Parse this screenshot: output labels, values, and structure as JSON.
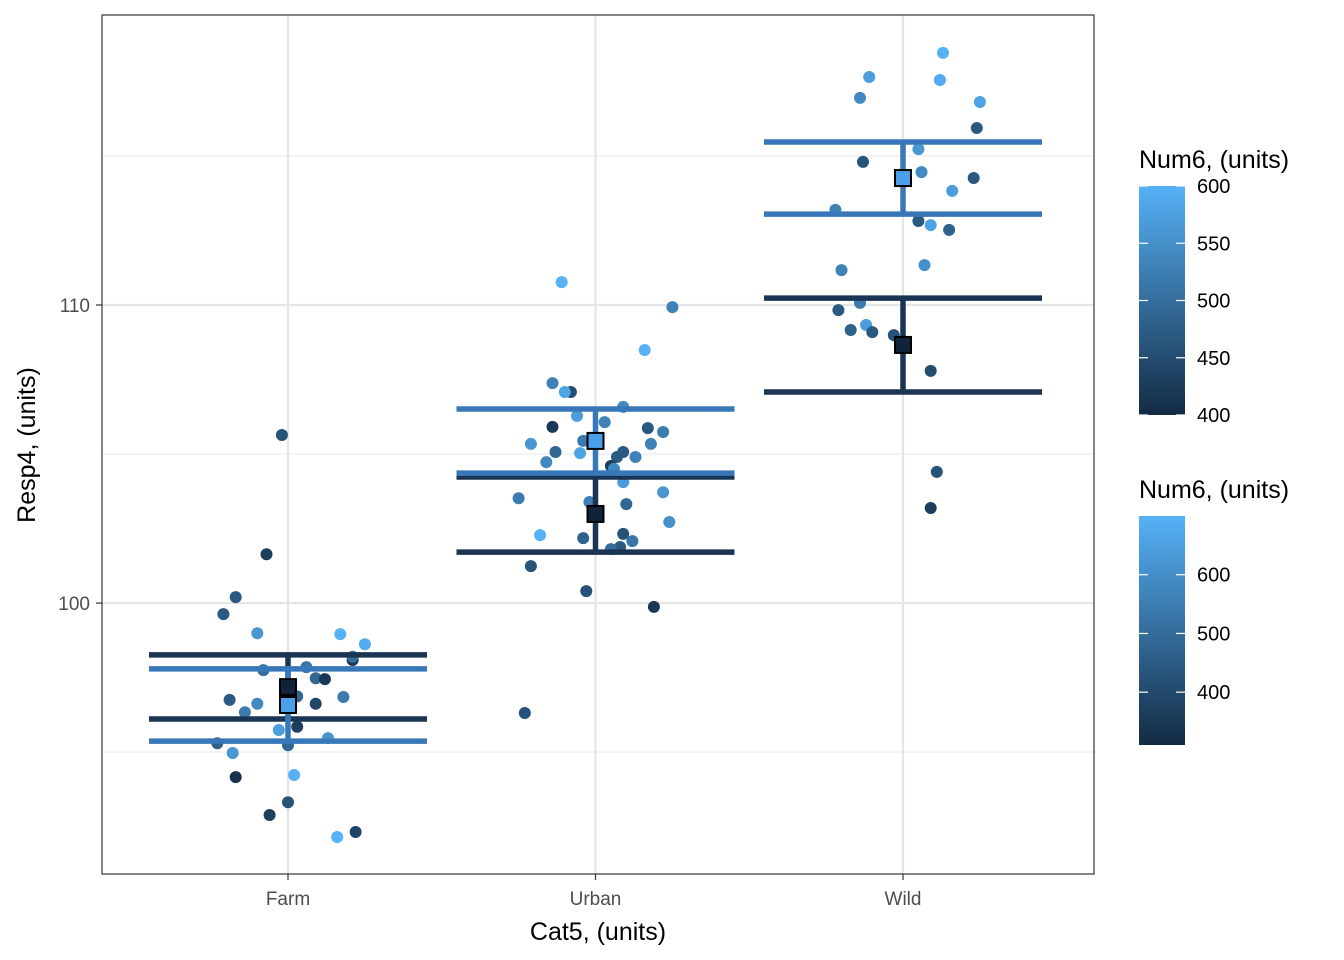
{
  "chart_data": {
    "type": "scatter",
    "title": "",
    "xlabel": "Cat5, (units)",
    "ylabel": "Resp4, (units)",
    "categories": [
      "Farm",
      "Urban",
      "Wild"
    ],
    "ylim": [
      90.91,
      119.73
    ],
    "yticks": [
      100,
      110
    ],
    "ytick_labels": [
      "100",
      "110"
    ],
    "grid": true,
    "color_scale": {
      "low": "#132B43",
      "high": "#56B1F7",
      "domain": [
        400,
        600
      ]
    },
    "legends": [
      {
        "title": "Num6, (units)",
        "position": "right-top",
        "range": [
          400,
          600
        ],
        "ticks": [
          400,
          450,
          500,
          550,
          600
        ],
        "tick_labels": [
          "400",
          "450",
          "500",
          "550",
          "600"
        ]
      },
      {
        "title": "Num6, (units)",
        "position": "right-bottom",
        "range": [
          310,
          700
        ],
        "ticks": [
          400,
          500,
          600
        ],
        "tick_labels": [
          "400",
          "500",
          "600"
        ]
      }
    ],
    "summaries": [
      {
        "category": "Farm",
        "group": "low",
        "color": "#1A3554",
        "mean": 97.18,
        "lower": 96.11,
        "upper": 98.26,
        "mean_fill": "#11233A"
      },
      {
        "category": "Farm",
        "group": "high",
        "color": "#3878B8",
        "mean": 96.58,
        "lower": 95.37,
        "upper": 97.79,
        "mean_fill": "#4A9FEA"
      },
      {
        "category": "Urban",
        "group": "low",
        "color": "#1A3554",
        "mean": 102.99,
        "lower": 101.71,
        "upper": 104.23,
        "mean_fill": "#11233A"
      },
      {
        "category": "Urban",
        "group": "high",
        "color": "#3878B8",
        "mean": 105.44,
        "lower": 104.36,
        "upper": 106.51,
        "mean_fill": "#4A9FEA"
      },
      {
        "category": "Wild",
        "group": "low",
        "color": "#1A3554",
        "mean": 108.66,
        "lower": 107.08,
        "upper": 110.23,
        "mean_fill": "#11233A"
      },
      {
        "category": "Wild",
        "group": "high",
        "color": "#3878B8",
        "mean": 114.26,
        "lower": 113.05,
        "upper": 115.47,
        "mean_fill": "#4A9FEA"
      }
    ],
    "points": [
      {
        "cat": "Farm",
        "jitter": -0.02,
        "y": 105.64,
        "num6": 460
      },
      {
        "cat": "Farm",
        "jitter": -0.07,
        "y": 101.64,
        "num6": 430
      },
      {
        "cat": "Farm",
        "jitter": -0.17,
        "y": 100.2,
        "num6": 470
      },
      {
        "cat": "Farm",
        "jitter": -0.21,
        "y": 99.63,
        "num6": 470
      },
      {
        "cat": "Farm",
        "jitter": -0.1,
        "y": 98.99,
        "num6": 560
      },
      {
        "cat": "Farm",
        "jitter": 0.17,
        "y": 98.96,
        "num6": 600
      },
      {
        "cat": "Farm",
        "jitter": 0.25,
        "y": 98.62,
        "num6": 590
      },
      {
        "cat": "Farm",
        "jitter": 0.21,
        "y": 98.09,
        "num6": 420
      },
      {
        "cat": "Farm",
        "jitter": 0.21,
        "y": 98.2,
        "num6": 500
      },
      {
        "cat": "Farm",
        "jitter": -0.08,
        "y": 97.75,
        "num6": 500
      },
      {
        "cat": "Farm",
        "jitter": 0.06,
        "y": 97.85,
        "num6": 510
      },
      {
        "cat": "Farm",
        "jitter": 0.09,
        "y": 97.48,
        "num6": 490
      },
      {
        "cat": "Farm",
        "jitter": 0.12,
        "y": 97.45,
        "num6": 420
      },
      {
        "cat": "Farm",
        "jitter": -0.19,
        "y": 96.75,
        "num6": 470
      },
      {
        "cat": "Farm",
        "jitter": -0.1,
        "y": 96.62,
        "num6": 540
      },
      {
        "cat": "Farm",
        "jitter": 0.03,
        "y": 96.87,
        "num6": 490
      },
      {
        "cat": "Farm",
        "jitter": 0.09,
        "y": 96.62,
        "num6": 440
      },
      {
        "cat": "Farm",
        "jitter": 0.18,
        "y": 96.85,
        "num6": 520
      },
      {
        "cat": "Farm",
        "jitter": -0.14,
        "y": 96.34,
        "num6": 520
      },
      {
        "cat": "Farm",
        "jitter": -0.03,
        "y": 95.74,
        "num6": 570
      },
      {
        "cat": "Farm",
        "jitter": 0.13,
        "y": 95.47,
        "num6": 560
      },
      {
        "cat": "Farm",
        "jitter": -0.23,
        "y": 95.3,
        "num6": 480
      },
      {
        "cat": "Farm",
        "jitter": 0.0,
        "y": 95.23,
        "num6": 490
      },
      {
        "cat": "Farm",
        "jitter": 0.03,
        "y": 95.85,
        "num6": 430
      },
      {
        "cat": "Farm",
        "jitter": -0.18,
        "y": 94.97,
        "num6": 560
      },
      {
        "cat": "Farm",
        "jitter": 0.02,
        "y": 94.23,
        "num6": 600
      },
      {
        "cat": "Farm",
        "jitter": -0.17,
        "y": 94.16,
        "num6": 410
      },
      {
        "cat": "Farm",
        "jitter": 0.0,
        "y": 93.32,
        "num6": 460
      },
      {
        "cat": "Farm",
        "jitter": -0.06,
        "y": 92.89,
        "num6": 430
      },
      {
        "cat": "Farm",
        "jitter": 0.16,
        "y": 92.15,
        "num6": 600
      },
      {
        "cat": "Farm",
        "jitter": 0.22,
        "y": 92.32,
        "num6": 440
      },
      {
        "cat": "Urban",
        "jitter": -0.11,
        "y": 110.77,
        "num6": 600
      },
      {
        "cat": "Urban",
        "jitter": 0.25,
        "y": 109.93,
        "num6": 530
      },
      {
        "cat": "Urban",
        "jitter": 0.16,
        "y": 108.49,
        "num6": 600
      },
      {
        "cat": "Urban",
        "jitter": -0.14,
        "y": 107.38,
        "num6": 530
      },
      {
        "cat": "Urban",
        "jitter": -0.08,
        "y": 107.08,
        "num6": 450
      },
      {
        "cat": "Urban",
        "jitter": -0.1,
        "y": 107.08,
        "num6": 580
      },
      {
        "cat": "Urban",
        "jitter": 0.09,
        "y": 106.58,
        "num6": 540
      },
      {
        "cat": "Urban",
        "jitter": -0.06,
        "y": 106.28,
        "num6": 570
      },
      {
        "cat": "Urban",
        "jitter": 0.03,
        "y": 106.07,
        "num6": 530
      },
      {
        "cat": "Urban",
        "jitter": -0.14,
        "y": 105.91,
        "num6": 420
      },
      {
        "cat": "Urban",
        "jitter": 0.17,
        "y": 105.87,
        "num6": 470
      },
      {
        "cat": "Urban",
        "jitter": 0.22,
        "y": 105.74,
        "num6": 520
      },
      {
        "cat": "Urban",
        "jitter": -0.21,
        "y": 105.34,
        "num6": 560
      },
      {
        "cat": "Urban",
        "jitter": -0.13,
        "y": 105.07,
        "num6": 490
      },
      {
        "cat": "Urban",
        "jitter": -0.04,
        "y": 105.44,
        "num6": 520
      },
      {
        "cat": "Urban",
        "jitter": -0.05,
        "y": 105.03,
        "num6": 580
      },
      {
        "cat": "Urban",
        "jitter": 0.18,
        "y": 105.34,
        "num6": 530
      },
      {
        "cat": "Urban",
        "jitter": -0.16,
        "y": 104.73,
        "num6": 540
      },
      {
        "cat": "Urban",
        "jitter": 0.09,
        "y": 105.07,
        "num6": 470
      },
      {
        "cat": "Urban",
        "jitter": 0.07,
        "y": 104.9,
        "num6": 470
      },
      {
        "cat": "Urban",
        "jitter": 0.05,
        "y": 104.6,
        "num6": 430
      },
      {
        "cat": "Urban",
        "jitter": 0.13,
        "y": 104.9,
        "num6": 530
      },
      {
        "cat": "Urban",
        "jitter": 0.06,
        "y": 104.5,
        "num6": 540
      },
      {
        "cat": "Urban",
        "jitter": 0.09,
        "y": 104.06,
        "num6": 570
      },
      {
        "cat": "Urban",
        "jitter": 0.22,
        "y": 103.72,
        "num6": 560
      },
      {
        "cat": "Urban",
        "jitter": -0.25,
        "y": 103.52,
        "num6": 520
      },
      {
        "cat": "Urban",
        "jitter": -0.02,
        "y": 103.39,
        "num6": 530
      },
      {
        "cat": "Urban",
        "jitter": 0.1,
        "y": 103.32,
        "num6": 490
      },
      {
        "cat": "Urban",
        "jitter": -0.18,
        "y": 102.28,
        "num6": 600
      },
      {
        "cat": "Urban",
        "jitter": 0.24,
        "y": 102.72,
        "num6": 550
      },
      {
        "cat": "Urban",
        "jitter": -0.04,
        "y": 102.18,
        "num6": 480
      },
      {
        "cat": "Urban",
        "jitter": 0.09,
        "y": 102.32,
        "num6": 460
      },
      {
        "cat": "Urban",
        "jitter": 0.12,
        "y": 102.08,
        "num6": 510
      },
      {
        "cat": "Urban",
        "jitter": 0.08,
        "y": 101.88,
        "num6": 470
      },
      {
        "cat": "Urban",
        "jitter": 0.05,
        "y": 101.81,
        "num6": 500
      },
      {
        "cat": "Urban",
        "jitter": -0.21,
        "y": 101.24,
        "num6": 460
      },
      {
        "cat": "Urban",
        "jitter": -0.03,
        "y": 100.4,
        "num6": 460
      },
      {
        "cat": "Urban",
        "jitter": 0.19,
        "y": 99.87,
        "num6": 420
      },
      {
        "cat": "Urban",
        "jitter": -0.23,
        "y": 96.31,
        "num6": 460
      },
      {
        "cat": "Wild",
        "jitter": 0.13,
        "y": 118.46,
        "num6": 600
      },
      {
        "cat": "Wild",
        "jitter": -0.11,
        "y": 117.65,
        "num6": 570
      },
      {
        "cat": "Wild",
        "jitter": 0.12,
        "y": 117.55,
        "num6": 590
      },
      {
        "cat": "Wild",
        "jitter": -0.14,
        "y": 116.95,
        "num6": 540
      },
      {
        "cat": "Wild",
        "jitter": 0.25,
        "y": 116.81,
        "num6": 580
      },
      {
        "cat": "Wild",
        "jitter": 0.24,
        "y": 115.94,
        "num6": 470
      },
      {
        "cat": "Wild",
        "jitter": 0.05,
        "y": 115.23,
        "num6": 560
      },
      {
        "cat": "Wild",
        "jitter": -0.13,
        "y": 114.8,
        "num6": 460
      },
      {
        "cat": "Wild",
        "jitter": 0.06,
        "y": 114.46,
        "num6": 540
      },
      {
        "cat": "Wild",
        "jitter": 0.23,
        "y": 114.26,
        "num6": 470
      },
      {
        "cat": "Wild",
        "jitter": 0.16,
        "y": 113.83,
        "num6": 570
      },
      {
        "cat": "Wild",
        "jitter": -0.22,
        "y": 113.19,
        "num6": 530
      },
      {
        "cat": "Wild",
        "jitter": 0.05,
        "y": 112.82,
        "num6": 470
      },
      {
        "cat": "Wild",
        "jitter": 0.09,
        "y": 112.68,
        "num6": 580
      },
      {
        "cat": "Wild",
        "jitter": 0.15,
        "y": 112.52,
        "num6": 480
      },
      {
        "cat": "Wild",
        "jitter": 0.07,
        "y": 111.34,
        "num6": 550
      },
      {
        "cat": "Wild",
        "jitter": -0.2,
        "y": 111.17,
        "num6": 530
      },
      {
        "cat": "Wild",
        "jitter": -0.14,
        "y": 110.07,
        "num6": 520
      },
      {
        "cat": "Wild",
        "jitter": -0.21,
        "y": 109.83,
        "num6": 470
      },
      {
        "cat": "Wild",
        "jitter": -0.12,
        "y": 109.33,
        "num6": 570
      },
      {
        "cat": "Wild",
        "jitter": -0.17,
        "y": 109.16,
        "num6": 480
      },
      {
        "cat": "Wild",
        "jitter": -0.1,
        "y": 109.09,
        "num6": 470
      },
      {
        "cat": "Wild",
        "jitter": -0.03,
        "y": 108.99,
        "num6": 460
      },
      {
        "cat": "Wild",
        "jitter": 0.09,
        "y": 107.79,
        "num6": 450
      },
      {
        "cat": "Wild",
        "jitter": 0.11,
        "y": 104.4,
        "num6": 460
      },
      {
        "cat": "Wild",
        "jitter": 0.09,
        "y": 103.19,
        "num6": 430
      }
    ]
  }
}
